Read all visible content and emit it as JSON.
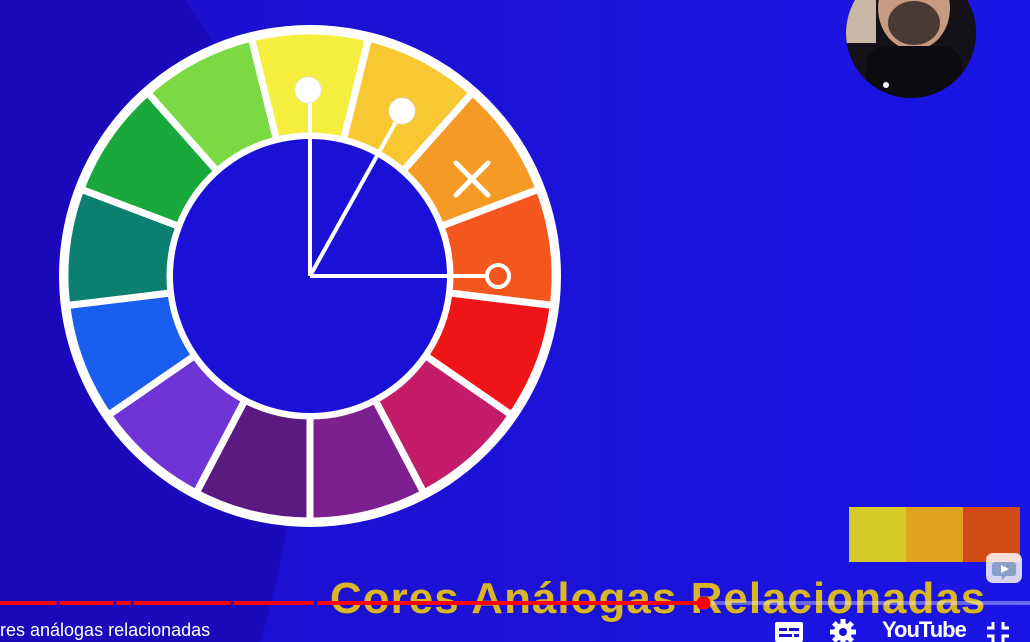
{
  "video": {
    "title": "res análogas relacionadas",
    "caption": "Cores Análogas Relacionadas",
    "watermark": "YouTube"
  },
  "player": {
    "progress_fraction": 0.683,
    "chapter_breaks": [
      0.055,
      0.11,
      0.127,
      0.224,
      0.305
    ]
  },
  "color_wheel": {
    "segments": [
      "#f6ee3e",
      "#f8c833",
      "#f59a25",
      "#f4571d",
      "#ef1417",
      "#c51c6a",
      "#7c2090",
      "#5b1a82",
      "#6f34d6",
      "#1a5ef0",
      "#0b8070",
      "#18a83c",
      "#7bd944"
    ],
    "markers": [
      "dot",
      "dot",
      "x",
      "ring"
    ]
  },
  "swatches": [
    "#d6c928",
    "#e0a21f",
    "#d24a16"
  ],
  "colors": {
    "background": "#1a0fd8",
    "progress_played": "#ff0000",
    "caption": "#d8b62a"
  },
  "icons": {
    "pip": "picture-in-picture-icon",
    "subtitles": "subtitles-icon",
    "settings": "gear-icon",
    "fullscreen": "exit-fullscreen-icon"
  }
}
